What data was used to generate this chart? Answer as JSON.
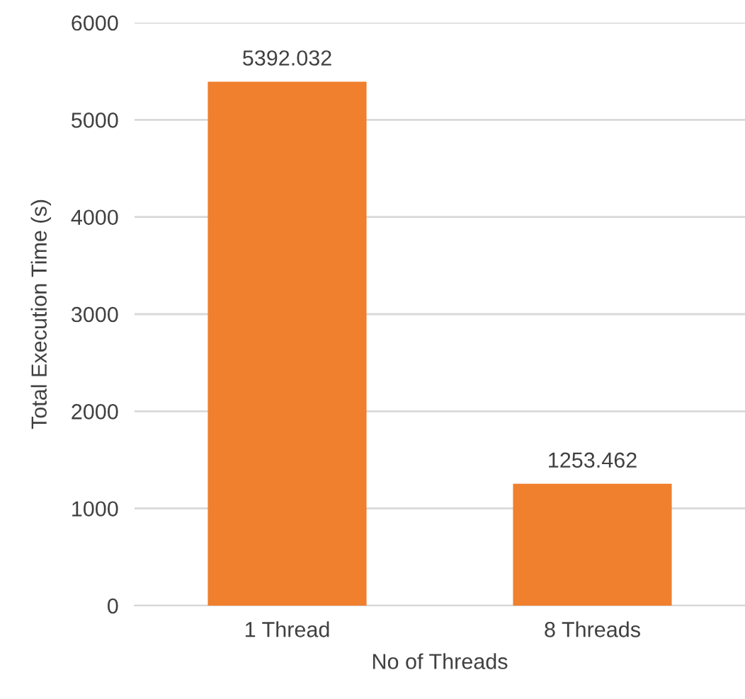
{
  "chart_data": {
    "type": "bar",
    "xlabel": "No of Threads",
    "ylabel": "Total Execution Time (s)",
    "categories": [
      "1 Thread",
      "8 Threads"
    ],
    "values": [
      5392.032,
      1253.462
    ],
    "color": "#f07f2e",
    "ylim": [
      0,
      6000
    ],
    "yticks": [
      0,
      1000,
      2000,
      3000,
      4000,
      5000,
      6000
    ],
    "grid": "y",
    "data_labels": true
  }
}
